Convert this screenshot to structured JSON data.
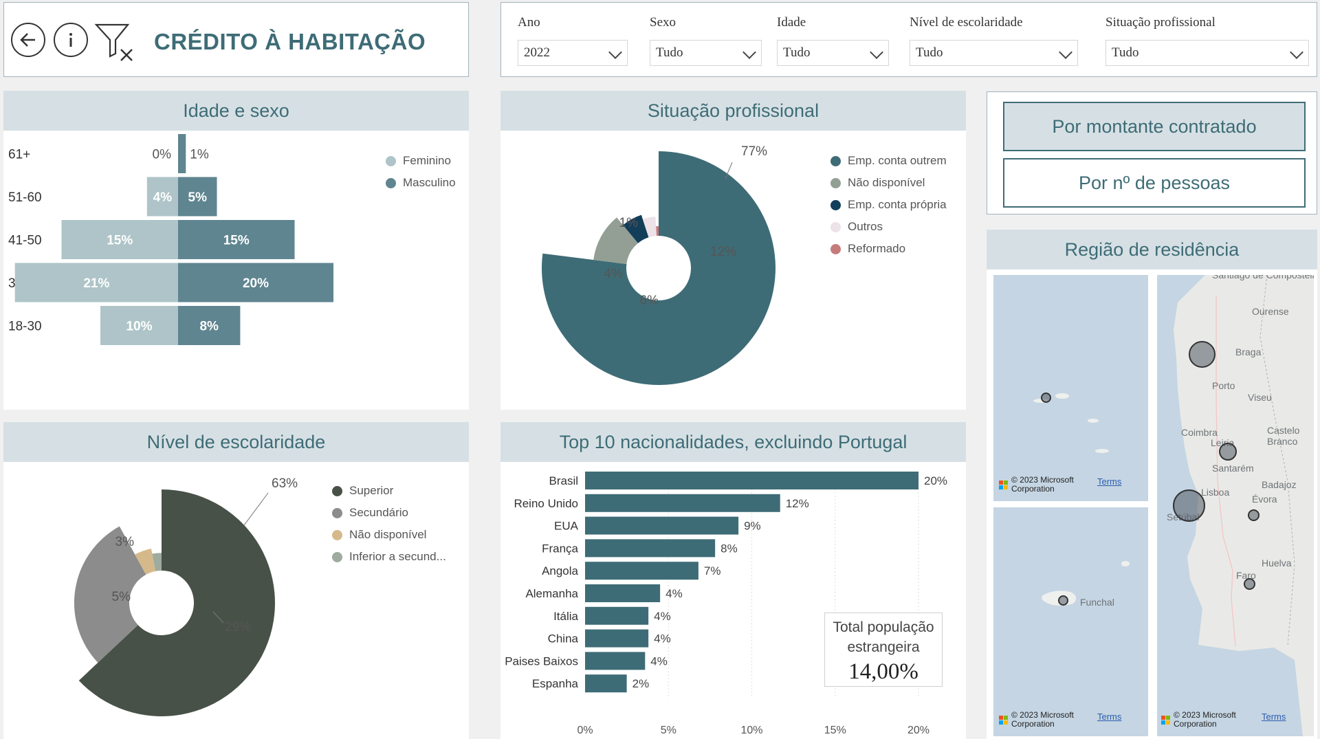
{
  "header": {
    "title": "CRÉDITO À HABITAÇÃO",
    "icons": [
      "back-arrow-icon",
      "info-icon",
      "clear-filter-icon"
    ]
  },
  "filters": [
    {
      "label": "Ano",
      "value": "2022"
    },
    {
      "label": "Sexo",
      "value": "Tudo"
    },
    {
      "label": "Idade",
      "value": "Tudo"
    },
    {
      "label": "Nível de escolaridade",
      "value": "Tudo"
    },
    {
      "label": "Situação profissional",
      "value": "Tudo"
    }
  ],
  "panels": {
    "idade_sexo": "Idade e sexo",
    "situacao": "Situação profissional",
    "escolaridade": "Nível de escolaridade",
    "nacionalidades": "Top 10 nacionalidades, excluindo Portugal",
    "regiao": "Região de residência"
  },
  "toggle_buttons": {
    "montante": "Por montante contratado",
    "pessoas": "Por nº de pessoas"
  },
  "total_card": {
    "label": "Total população estrangeira",
    "value": "14,00%"
  },
  "colors": {
    "feminino": "#aec4c8",
    "masculino": "#5f8590",
    "accent": "#3e6c76",
    "header_bg": "#d6e0e4"
  },
  "chart_data": [
    {
      "id": "idade_sexo",
      "type": "bar",
      "orientation": "horizontal-diverging",
      "categories": [
        "61+",
        "51-60",
        "41-50",
        "31-40",
        "18-30"
      ],
      "series": [
        {
          "name": "Feminino",
          "values": [
            0,
            4,
            15,
            21,
            10
          ],
          "labels": [
            "0%",
            "4%",
            "15%",
            "21%",
            "10%"
          ],
          "color": "#aec4c8"
        },
        {
          "name": "Masculino",
          "values": [
            1,
            5,
            15,
            20,
            8
          ],
          "labels": [
            "1%",
            "5%",
            "15%",
            "20%",
            "8%"
          ],
          "color": "#5f8590"
        }
      ],
      "legend": "top-right"
    },
    {
      "id": "situacao",
      "type": "pie",
      "style": "rose",
      "slices": [
        {
          "name": "Emp. conta outrem",
          "value": 77,
          "label": "77%",
          "color": "#3e6c76"
        },
        {
          "name": "Não disponível",
          "value": 12,
          "label": "12%",
          "color": "#939f94"
        },
        {
          "name": "Emp. conta própria",
          "value": 6,
          "label": "6%",
          "color": "#123e5a"
        },
        {
          "name": "Outros",
          "value": 4,
          "label": "4%",
          "color": "#ece2e7"
        },
        {
          "name": "Reformado",
          "value": 1,
          "label": "1%",
          "color": "#c67b7b"
        }
      ],
      "legend": "right"
    },
    {
      "id": "escolaridade",
      "type": "pie",
      "style": "rose",
      "slices": [
        {
          "name": "Superior",
          "value": 63,
          "label": "63%",
          "color": "#485148"
        },
        {
          "name": "Secundário",
          "value": 29,
          "label": "29%",
          "color": "#8c8c8c"
        },
        {
          "name": "Não disponível",
          "value": 5,
          "label": "5%",
          "color": "#d6b98a"
        },
        {
          "name": "Inferior a secund...",
          "value": 3,
          "label": "3%",
          "color": "#9eab9f"
        }
      ],
      "legend": "right"
    },
    {
      "id": "nacionalidades",
      "type": "bar",
      "orientation": "horizontal",
      "categories": [
        "Brasil",
        "Reino Unido",
        "EUA",
        "França",
        "Angola",
        "Alemanha",
        "Itália",
        "China",
        "Paises Baixos",
        "Espanha"
      ],
      "values": [
        20,
        11.7,
        9.2,
        7.8,
        6.8,
        4.5,
        3.8,
        3.8,
        3.6,
        2.5
      ],
      "labels": [
        "20%",
        "12%",
        "9%",
        "8%",
        "7%",
        "4%",
        "4%",
        "4%",
        "4%",
        "2%"
      ],
      "x_ticks": [
        "0%",
        "5%",
        "10%",
        "15%",
        "20%"
      ],
      "xlim": [
        0,
        20
      ],
      "grid": true,
      "color": "#3e6c76"
    }
  ],
  "maps": {
    "places_mainland": [
      "Santiago de Compostela",
      "Ourense",
      "Braga",
      "Porto",
      "Viseu",
      "Coimbra",
      "Castelo Branco",
      "Leiria",
      "Santarém",
      "Badajoz",
      "Lisboa",
      "Évora",
      "Setúbal",
      "Huelva",
      "Faro"
    ],
    "places_madeira": [
      "Funchal"
    ],
    "copyright": "© 2023 Microsoft Corporation",
    "terms": "Terms"
  }
}
